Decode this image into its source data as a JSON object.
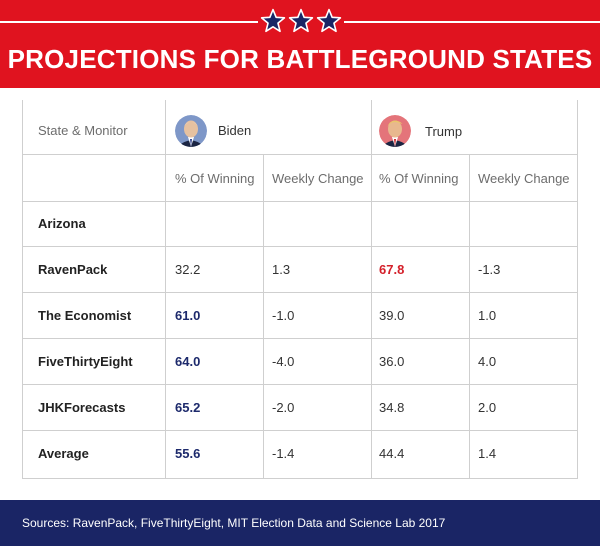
{
  "colors": {
    "red": "#e0131f",
    "navy": "#1a2565",
    "blue_value": "#1d2a6c",
    "red_value": "#d4202a"
  },
  "header": {
    "title": "PROJECTIONS FOR BATTLEGROUND STATES",
    "stars": [
      "star-icon",
      "star-icon",
      "star-icon"
    ]
  },
  "table": {
    "state_monitor_label": "State & Monitor",
    "candidates": [
      {
        "name": "Biden",
        "avatar": "biden-avatar"
      },
      {
        "name": "Trump",
        "avatar": "trump-avatar"
      }
    ],
    "subheaders": [
      "% Of Winning",
      "Weekly Change",
      "% Of Winning",
      "Weekly Change"
    ],
    "state": "Arizona",
    "rows": [
      {
        "label": "RavenPack",
        "biden_win": "32.2",
        "biden_change": "1.3",
        "trump_win": "67.8",
        "trump_change": "-1.3"
      },
      {
        "label": "The Economist",
        "biden_win": "61.0",
        "biden_change": "-1.0",
        "trump_win": "39.0",
        "trump_change": "1.0"
      },
      {
        "label": "FiveThirtyEight",
        "biden_win": "64.0",
        "biden_change": "-4.0",
        "trump_win": "36.0",
        "trump_change": "4.0"
      },
      {
        "label": "JHKForecasts",
        "biden_win": "65.2",
        "biden_change": "-2.0",
        "trump_win": "34.8",
        "trump_change": "2.0"
      },
      {
        "label": "Average",
        "biden_win": "55.6",
        "biden_change": "-1.4",
        "trump_win": "44.4",
        "trump_change": "1.4"
      }
    ]
  },
  "footer": {
    "sources": "Sources: RavenPack, FiveThirtyEight, MIT Election Data and Science Lab 2017"
  }
}
